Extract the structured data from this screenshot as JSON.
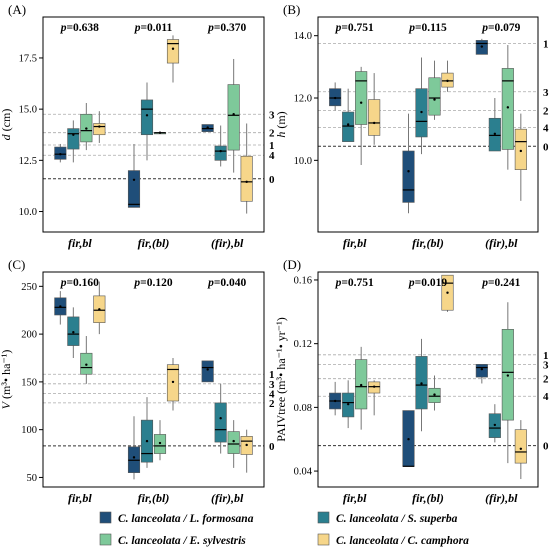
{
  "colors": [
    "#1f4e79",
    "#2b7f8f",
    "#7ec99a",
    "#f6d68a"
  ],
  "legend": [
    "C. lanceolata / L. formosana",
    "C. lanceolata / S. superba",
    "C. lanceolata / E. sylvestris",
    "C. lanceolata / C. camphora"
  ],
  "chart_data": [
    {
      "type": "box",
      "panel": "(A)",
      "ylabel": "d (cm)",
      "ylim": [
        9.0,
        19.5
      ],
      "yticks": [
        "10.0",
        "12.5",
        "15.0",
        "17.5"
      ],
      "categories": [
        "fir,bl",
        "fir,(bl)",
        "(fir),bl"
      ],
      "p_values": [
        "p=0.638",
        "p=0.011",
        "p=0.370"
      ],
      "reference_lines": [
        {
          "label": "0",
          "y": 11.6,
          "style": "dark"
        },
        {
          "label": "4",
          "y": 12.75,
          "style": "light"
        },
        {
          "label": "1",
          "y": 13.25,
          "style": "light"
        },
        {
          "label": "2",
          "y": 13.85,
          "style": "light"
        },
        {
          "label": "3",
          "y": 14.75,
          "style": "light"
        }
      ],
      "boxes": [
        [
          {
            "lw": 12.4,
            "q1": 12.55,
            "med": 12.8,
            "q3": 13.15,
            "uw": 13.3,
            "mean": 12.8
          },
          {
            "lw": 12.4,
            "q1": 13.05,
            "med": 13.8,
            "q3": 14.05,
            "uw": 14.45,
            "mean": 13.75
          },
          {
            "lw": 13.0,
            "q1": 13.4,
            "med": 13.95,
            "q3": 14.75,
            "uw": 15.3,
            "mean": 14.05
          },
          {
            "lw": 13.35,
            "q1": 13.75,
            "med": 14.15,
            "q3": 14.3,
            "uw": 14.9,
            "mean": 14.15
          }
        ],
        [
          {
            "lw": 10.2,
            "q1": 10.2,
            "med": 10.35,
            "q3": 12.0,
            "uw": 13.3,
            "mean": 11.55
          },
          {
            "lw": 12.5,
            "q1": 13.75,
            "med": 15.0,
            "q3": 15.45,
            "uw": 16.3,
            "mean": 14.7
          },
          {
            "lw": 13.85,
            "q1": 13.85,
            "med": 13.85,
            "q3": 13.85,
            "uw": 13.85,
            "mean": 13.85
          },
          {
            "lw": 16.3,
            "q1": 17.25,
            "med": 18.2,
            "q3": 18.4,
            "uw": 18.6,
            "mean": 17.95
          }
        ],
        [
          {
            "lw": 13.9,
            "q1": 13.9,
            "med": 14.05,
            "q3": 14.25,
            "uw": 14.25,
            "mean": 14.1
          },
          {
            "lw": 12.2,
            "q1": 12.5,
            "med": 12.95,
            "q3": 13.2,
            "uw": 14.2,
            "mean": 12.95
          },
          {
            "lw": 11.9,
            "q1": 13.0,
            "med": 14.7,
            "q3": 16.2,
            "uw": 17.45,
            "mean": 14.75
          },
          {
            "lw": 9.9,
            "q1": 10.5,
            "med": 11.45,
            "q3": 12.7,
            "uw": 14.3,
            "mean": 11.45
          }
        ]
      ]
    },
    {
      "type": "box",
      "panel": "(B)",
      "ylabel": "h (m)",
      "ylim": [
        7.7,
        14.6
      ],
      "yticks": [
        "10.0",
        "12.0",
        "14.0"
      ],
      "categories": [
        "fir,bl",
        "fir,(bl)",
        "(fir),bl"
      ],
      "p_values": [
        "p=0.751",
        "p=0.115",
        "p=0.079"
      ],
      "reference_lines": [
        {
          "label": "0",
          "y": 10.45,
          "style": "dark"
        },
        {
          "label": "4",
          "y": 11.05,
          "style": "light"
        },
        {
          "label": "2",
          "y": 11.6,
          "style": "light"
        },
        {
          "label": "3",
          "y": 12.2,
          "style": "light"
        },
        {
          "label": "1",
          "y": 13.75,
          "style": "light"
        }
      ],
      "boxes": [
        [
          {
            "lw": 11.6,
            "q1": 11.75,
            "med": 12.0,
            "q3": 12.3,
            "uw": 12.5,
            "mean": 12.0
          },
          {
            "lw": 10.6,
            "q1": 10.6,
            "med": 11.1,
            "q3": 11.55,
            "uw": 12.3,
            "mean": 11.15
          },
          {
            "lw": 9.85,
            "q1": 11.15,
            "med": 12.55,
            "q3": 12.85,
            "uw": 13.0,
            "mean": 11.85
          },
          {
            "lw": 10.5,
            "q1": 10.8,
            "med": 11.2,
            "q3": 11.95,
            "uw": 12.8,
            "mean": 11.2
          }
        ],
        [
          {
            "lw": 8.3,
            "q1": 8.65,
            "med": 9.05,
            "q3": 10.3,
            "uw": 11.5,
            "mean": 9.65
          },
          {
            "lw": 10.2,
            "q1": 10.75,
            "med": 11.25,
            "q3": 12.3,
            "uw": 13.3,
            "mean": 11.55
          },
          {
            "lw": 11.3,
            "q1": 11.45,
            "med": 12.0,
            "q3": 12.65,
            "uw": 13.2,
            "mean": 11.95
          },
          {
            "lw": 12.2,
            "q1": 12.35,
            "med": 12.55,
            "q3": 12.8,
            "uw": 13.2,
            "mean": 12.55
          }
        ],
        [
          {
            "lw": 13.4,
            "q1": 13.4,
            "med": 13.75,
            "q3": 13.85,
            "uw": 13.9,
            "mean": 13.65
          },
          {
            "lw": 10.3,
            "q1": 10.3,
            "med": 10.8,
            "q3": 11.35,
            "uw": 12.0,
            "mean": 10.85
          },
          {
            "lw": 9.7,
            "q1": 10.35,
            "med": 12.55,
            "q3": 12.95,
            "uw": 13.7,
            "mean": 11.7
          },
          {
            "lw": 8.7,
            "q1": 9.7,
            "med": 10.6,
            "q3": 11.0,
            "uw": 11.5,
            "mean": 10.3
          }
        ]
      ]
    },
    {
      "type": "box",
      "panel": "(C)",
      "ylabel": "V (m³• ha⁻¹)",
      "ylim": [
        40,
        265
      ],
      "yticks": [
        "50",
        "100",
        "150",
        "200",
        "250"
      ],
      "categories": [
        "fir,bl",
        "fir,(bl)",
        "(fir),bl"
      ],
      "p_values": [
        "p=0.160",
        "p=0.120",
        "p=0.040"
      ],
      "reference_lines": [
        {
          "label": "0",
          "y": 83,
          "style": "dark"
        },
        {
          "label": "2",
          "y": 128,
          "style": "light"
        },
        {
          "label": "4",
          "y": 138,
          "style": "light"
        },
        {
          "label": "3",
          "y": 148,
          "style": "light"
        },
        {
          "label": "1",
          "y": 158,
          "style": "light"
        }
      ],
      "boxes": [
        [
          {
            "lw": 210,
            "q1": 220,
            "med": 228,
            "q3": 238,
            "uw": 245,
            "mean": 229
          },
          {
            "lw": 175,
            "q1": 188,
            "med": 200,
            "q3": 218,
            "uw": 228,
            "mean": 202
          },
          {
            "lw": 148,
            "q1": 158,
            "med": 165,
            "q3": 180,
            "uw": 198,
            "mean": 168
          },
          {
            "lw": 200,
            "q1": 212,
            "med": 225,
            "q3": 240,
            "uw": 255,
            "mean": 226
          }
        ],
        [
          {
            "lw": 48,
            "q1": 55,
            "med": 68,
            "q3": 82,
            "uw": 114,
            "mean": 71
          },
          {
            "lw": 60,
            "q1": 66,
            "med": 75,
            "q3": 110,
            "uw": 134,
            "mean": 88
          },
          {
            "lw": 68,
            "q1": 75,
            "med": 83,
            "q3": 95,
            "uw": 110,
            "mean": 86
          },
          {
            "lw": 120,
            "q1": 130,
            "med": 163,
            "q3": 168,
            "uw": 175,
            "mean": 150
          }
        ],
        [
          {
            "lw": 150,
            "q1": 150,
            "med": 165,
            "q3": 172,
            "uw": 172,
            "mean": 163
          },
          {
            "lw": 75,
            "q1": 87,
            "med": 100,
            "q3": 128,
            "uw": 148,
            "mean": 112
          },
          {
            "lw": 60,
            "q1": 75,
            "med": 85,
            "q3": 98,
            "uw": 110,
            "mean": 88
          },
          {
            "lw": 55,
            "q1": 74,
            "med": 88,
            "q3": 93,
            "uw": 100,
            "mean": 84
          }
        ]
      ]
    },
    {
      "type": "box",
      "panel": "(D)",
      "ylabel": "PAIVtree (m³• ha⁻¹• yr⁻¹)",
      "ylim": [
        0.03,
        0.165
      ],
      "yticks": [
        "0.04",
        "0.08",
        "0.12",
        "0.16"
      ],
      "categories": [
        "fir,bl",
        "fir,(bl)",
        "(fir),bl"
      ],
      "p_values": [
        "p=0.751",
        "p=0.019",
        "p=0.241"
      ],
      "reference_lines": [
        {
          "label": "0",
          "y": 0.056,
          "style": "dark"
        },
        {
          "label": "4",
          "y": 0.087,
          "style": "light"
        },
        {
          "label": "2",
          "y": 0.098,
          "style": "light"
        },
        {
          "label": "3",
          "y": 0.107,
          "style": "light"
        },
        {
          "label": "1",
          "y": 0.113,
          "style": "light"
        }
      ],
      "boxes": [
        [
          {
            "lw": 0.075,
            "q1": 0.079,
            "med": 0.084,
            "q3": 0.089,
            "uw": 0.096,
            "mean": 0.084
          },
          {
            "lw": 0.067,
            "q1": 0.074,
            "med": 0.083,
            "q3": 0.089,
            "uw": 0.097,
            "mean": 0.082
          },
          {
            "lw": 0.066,
            "q1": 0.079,
            "med": 0.093,
            "q3": 0.11,
            "uw": 0.118,
            "mean": 0.094
          },
          {
            "lw": 0.075,
            "q1": 0.089,
            "med": 0.093,
            "q3": 0.096,
            "uw": 0.097,
            "mean": 0.093
          }
        ],
        [
          {
            "lw": 0.043,
            "q1": 0.043,
            "med": 0.043,
            "q3": 0.078,
            "uw": 0.078,
            "mean": 0.06
          },
          {
            "lw": 0.065,
            "q1": 0.079,
            "med": 0.094,
            "q3": 0.112,
            "uw": 0.123,
            "mean": 0.095
          },
          {
            "lw": 0.078,
            "q1": 0.083,
            "med": 0.087,
            "q3": 0.092,
            "uw": 0.1,
            "mean": 0.088
          },
          {
            "lw": 0.14,
            "q1": 0.141,
            "med": 0.158,
            "q3": 0.163,
            "uw": 0.163,
            "mean": 0.152
          }
        ],
        [
          {
            "lw": 0.095,
            "q1": 0.099,
            "med": 0.105,
            "q3": 0.107,
            "uw": 0.107,
            "mean": 0.104
          },
          {
            "lw": 0.058,
            "q1": 0.061,
            "med": 0.067,
            "q3": 0.076,
            "uw": 0.082,
            "mean": 0.069
          },
          {
            "lw": 0.045,
            "q1": 0.072,
            "med": 0.102,
            "q3": 0.129,
            "uw": 0.146,
            "mean": 0.1
          },
          {
            "lw": 0.035,
            "q1": 0.045,
            "med": 0.052,
            "q3": 0.066,
            "uw": 0.072,
            "mean": 0.054
          }
        ]
      ]
    }
  ]
}
